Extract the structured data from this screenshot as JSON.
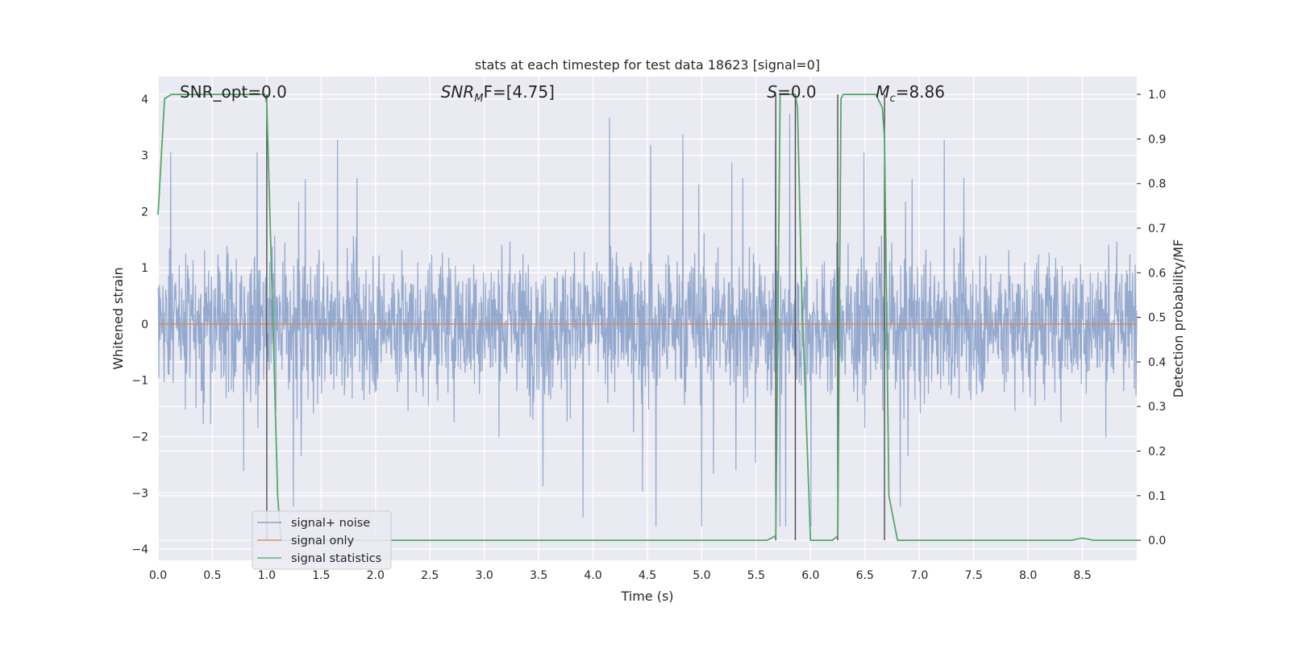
{
  "chart_data": {
    "type": "line",
    "title": "stats at each timestep for test data 18623 [signal=0]",
    "xlabel": "Time (s)",
    "ylabel_left": "Whitened strain",
    "ylabel_right": "Detection probability/MF",
    "xlim": [
      0,
      9.0
    ],
    "ylim_left": [
      -4.2,
      4.4
    ],
    "ylim_right": [
      -0.045,
      1.04
    ],
    "x_ticks": [
      "0.0",
      "0.5",
      "1.0",
      "1.5",
      "2.0",
      "2.5",
      "3.0",
      "3.5",
      "4.0",
      "4.5",
      "5.0",
      "5.5",
      "6.0",
      "6.5",
      "7.0",
      "7.5",
      "8.0",
      "8.5"
    ],
    "y_left_ticks": [
      "4",
      "3",
      "2",
      "1",
      "0",
      "−1",
      "−2",
      "−3",
      "−4"
    ],
    "y_right_ticks": [
      "1.0",
      "0.9",
      "0.8",
      "0.7",
      "0.6",
      "0.5",
      "0.4",
      "0.3",
      "0.2",
      "0.1",
      "0.0"
    ],
    "grid": true,
    "annotations": [
      {
        "text": "SNR_opt=0.0",
        "x": 0.2
      },
      {
        "text": "SNR",
        "sub": "M",
        "suffix": "F=[4.75]",
        "x": 2.6,
        "italic": true
      },
      {
        "text": "S",
        "suffix": "=0.0",
        "x": 5.6,
        "italic": true
      },
      {
        "text": "M",
        "sub": "c",
        "suffix": "=8.86",
        "x": 6.6,
        "italic": true
      }
    ],
    "series": [
      {
        "name": "signal+ noise",
        "color": "#4c72b0",
        "kind": "noise",
        "typical_range": [
          -1.5,
          1.5
        ],
        "extremes": [
          -3.6,
          4.0
        ]
      },
      {
        "name": "signal only",
        "color": "#dd8452",
        "kind": "constant",
        "value": 0.0
      },
      {
        "name": "signal statistics",
        "color": "#55a868",
        "axis": "right",
        "x": [
          0.0,
          0.06,
          0.12,
          0.2,
          0.3,
          0.4,
          0.5,
          0.6,
          0.7,
          0.8,
          0.9,
          0.98,
          1.0,
          1.05,
          1.1,
          1.13,
          1.2,
          1.5,
          2.0,
          3.0,
          4.0,
          5.0,
          5.5,
          5.6,
          5.68,
          5.72,
          5.76,
          5.8,
          5.86,
          5.88,
          5.92,
          6.0,
          6.1,
          6.2,
          6.25,
          6.28,
          6.3,
          6.4,
          6.5,
          6.6,
          6.66,
          6.68,
          6.72,
          6.8,
          7.0,
          7.5,
          8.0,
          8.4,
          8.5,
          8.6,
          9.0
        ],
        "y": [
          0.73,
          0.99,
          1.0,
          1.0,
          1.0,
          1.0,
          1.0,
          1.0,
          1.0,
          1.0,
          1.0,
          1.0,
          0.98,
          0.55,
          0.1,
          0.0,
          0.0,
          0.0,
          0.0,
          0.0,
          0.0,
          0.0,
          0.0,
          0.0,
          0.01,
          1.0,
          1.0,
          1.0,
          1.0,
          0.97,
          0.55,
          0.0,
          0.0,
          0.0,
          0.01,
          0.99,
          1.0,
          1.0,
          1.0,
          1.0,
          0.97,
          0.9,
          0.1,
          0.0,
          0.0,
          0.0,
          0.0,
          0.0,
          0.005,
          0.0,
          0.0
        ]
      },
      {
        "name": "",
        "color": "#4d4d4d",
        "kind": "vlines",
        "x": [
          1.0,
          5.68,
          5.86,
          6.25,
          6.68
        ],
        "y_range": [
          0.0,
          1.0
        ]
      }
    ],
    "legend": {
      "position": "lower-left",
      "entries": [
        "signal+ noise",
        "signal only",
        "signal statistics"
      ]
    }
  }
}
